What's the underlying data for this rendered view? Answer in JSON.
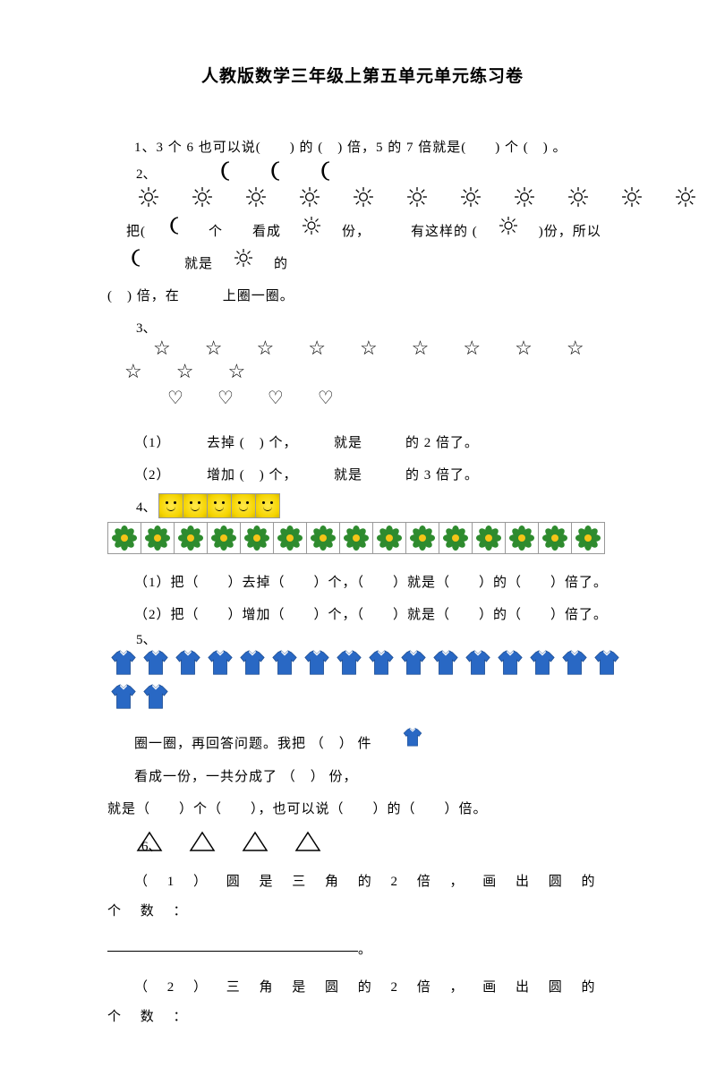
{
  "title": "人教版数学三年级上第五单元单元练习卷",
  "q1": {
    "text": "1、3 个 6 也可以说(　　)  的 (　)  倍，5 的 7 倍就是(　　)  个 (　)  。"
  },
  "q2": {
    "num": "2、",
    "moons": 3,
    "suns": 15,
    "line": "把(",
    "seg1": "个",
    "seg2": "看成",
    "seg3": "份，",
    "seg4": "有这样的 (",
    "seg5": ")份，所以",
    "seg6": "就是",
    "seg7": "的",
    "line2": "(　)  倍，在　　　上圈一圈。"
  },
  "q3": {
    "num": "3、",
    "stars": 12,
    "hearts": 4,
    "sub1": "（1）　　　去掉 (　)  个，　　　就是　　　的 2 倍了。",
    "sub2": "（2）　　　增加 (　)  个，　　　就是　　　的 3 倍了。"
  },
  "q4": {
    "num": "4、",
    "smileys": 5,
    "flowers": 15,
    "sub1": "（1）把（　　）去掉（　　）个，（　　）就是（　　）的（　　）倍了。",
    "sub2": "（2）把（　　）增加（　　）个，（　　）就是（　　）的（　　）倍了。"
  },
  "q5": {
    "num": "5、",
    "shirts_row1": 16,
    "shirts_row2": 2,
    "text1": "圈一圈，再回答问题。我把 （　） 件",
    "text2": "看成一份，一共分成了 （　） 份，",
    "text3": "就是（　　）个（　　），也可以说（　　）的（　　）倍。"
  },
  "q6": {
    "num": "6、",
    "triangles": 4,
    "sub1": "（ 1 ） 圆 是 三 角 的  2  倍 ， 画 出 圆 的 个 数 ：",
    "sub2": "（ 2 ） 三 角 是 圆 的  2  倍 ， 画 出 圆 的 个 数 ："
  },
  "colors": {
    "text": "#000000",
    "smiley_fill": "#ffe94a",
    "flower_petal": "#2e8b2e",
    "flower_center": "#f5c518",
    "shirt": "#2968c4",
    "grid": "#999999"
  }
}
